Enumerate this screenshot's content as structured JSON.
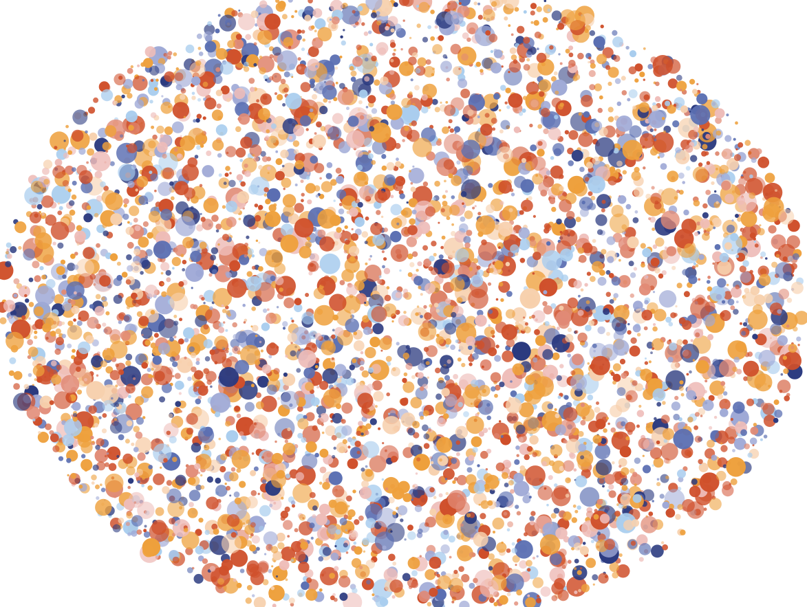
{
  "artwork": {
    "palette": {
      "dark-navy": "#2b3a7f",
      "mid-blue": "#5b6fb2",
      "periwinkle": "#9fa9d6",
      "sky-blue": "#a9cdee",
      "burnt-orange": "#cf4f2a",
      "salmon": "#e18a75",
      "blush": "#eebcb8",
      "amber": "#eea03c",
      "peach": "#f7d0ad"
    },
    "background": "#ffffff"
  }
}
